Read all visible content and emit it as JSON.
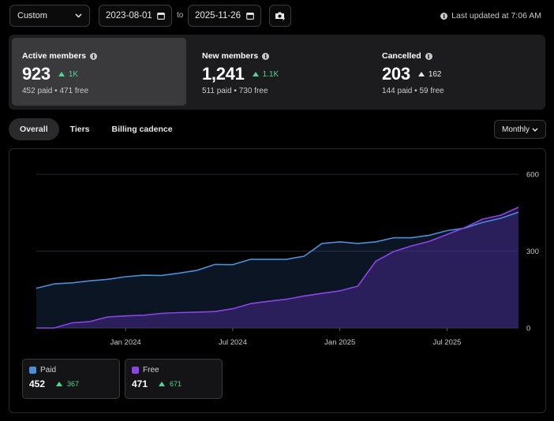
{
  "toolbar": {
    "range_select": "Custom",
    "start_date": "2023-08-01",
    "to_label": "to",
    "end_date": "2025-11-26",
    "last_updated": "Last updated at 7:06 AM"
  },
  "stats": [
    {
      "label": "Active members",
      "value": "923",
      "delta": "1K",
      "delta_dir": "up",
      "paid": "452 paid",
      "free": "471 free",
      "active": true
    },
    {
      "label": "New members",
      "value": "1,241",
      "delta": "1.1K",
      "delta_dir": "up",
      "paid": "511 paid",
      "free": "730 free",
      "active": false
    },
    {
      "label": "Cancelled",
      "value": "203",
      "delta": "162",
      "delta_dir": "up-neutral",
      "paid": "144 paid",
      "free": "59 free",
      "active": false
    }
  ],
  "separator": "•",
  "tabs": [
    "Overall",
    "Tiers",
    "Billing cadence"
  ],
  "period_select": "Monthly",
  "colors": {
    "paid": "#4a8fd8",
    "free": "#8b45e6",
    "positive": "#52d68f"
  },
  "chart_data": {
    "type": "area",
    "x": [
      "2023-08",
      "2023-09",
      "2023-10",
      "2023-11",
      "2023-12",
      "2024-01",
      "2024-02",
      "2024-03",
      "2024-04",
      "2024-05",
      "2024-06",
      "2024-07",
      "2024-08",
      "2024-09",
      "2024-10",
      "2024-11",
      "2024-12",
      "2025-01",
      "2025-02",
      "2025-03",
      "2025-04",
      "2025-05",
      "2025-06",
      "2025-07",
      "2025-08",
      "2025-09",
      "2025-10",
      "2025-11"
    ],
    "x_tick_labels": [
      {
        "label": "Jan 2024",
        "at": "2024-01"
      },
      {
        "label": "Jul 2024",
        "at": "2024-07"
      },
      {
        "label": "Jan 2025",
        "at": "2025-01"
      },
      {
        "label": "Jul 2025",
        "at": "2025-07"
      }
    ],
    "y_ticks": [
      "600",
      "300",
      "0"
    ],
    "ylim": [
      0,
      600
    ],
    "series": [
      {
        "name": "Paid",
        "values": [
          155,
          172,
          176,
          184,
          190,
          200,
          206,
          205,
          214,
          225,
          248,
          247,
          268,
          268,
          268,
          280,
          330,
          336,
          330,
          336,
          352,
          352,
          362,
          380,
          390,
          412,
          428,
          452
        ]
      },
      {
        "name": "Free",
        "values": [
          0,
          0,
          20,
          25,
          43,
          47,
          50,
          57,
          60,
          62,
          64,
          75,
          95,
          104,
          112,
          125,
          135,
          145,
          163,
          260,
          298,
          320,
          338,
          365,
          392,
          425,
          440,
          471
        ]
      }
    ]
  },
  "legend": [
    {
      "name": "Paid",
      "value": "452",
      "delta": "367"
    },
    {
      "name": "Free",
      "value": "471",
      "delta": "671"
    }
  ]
}
